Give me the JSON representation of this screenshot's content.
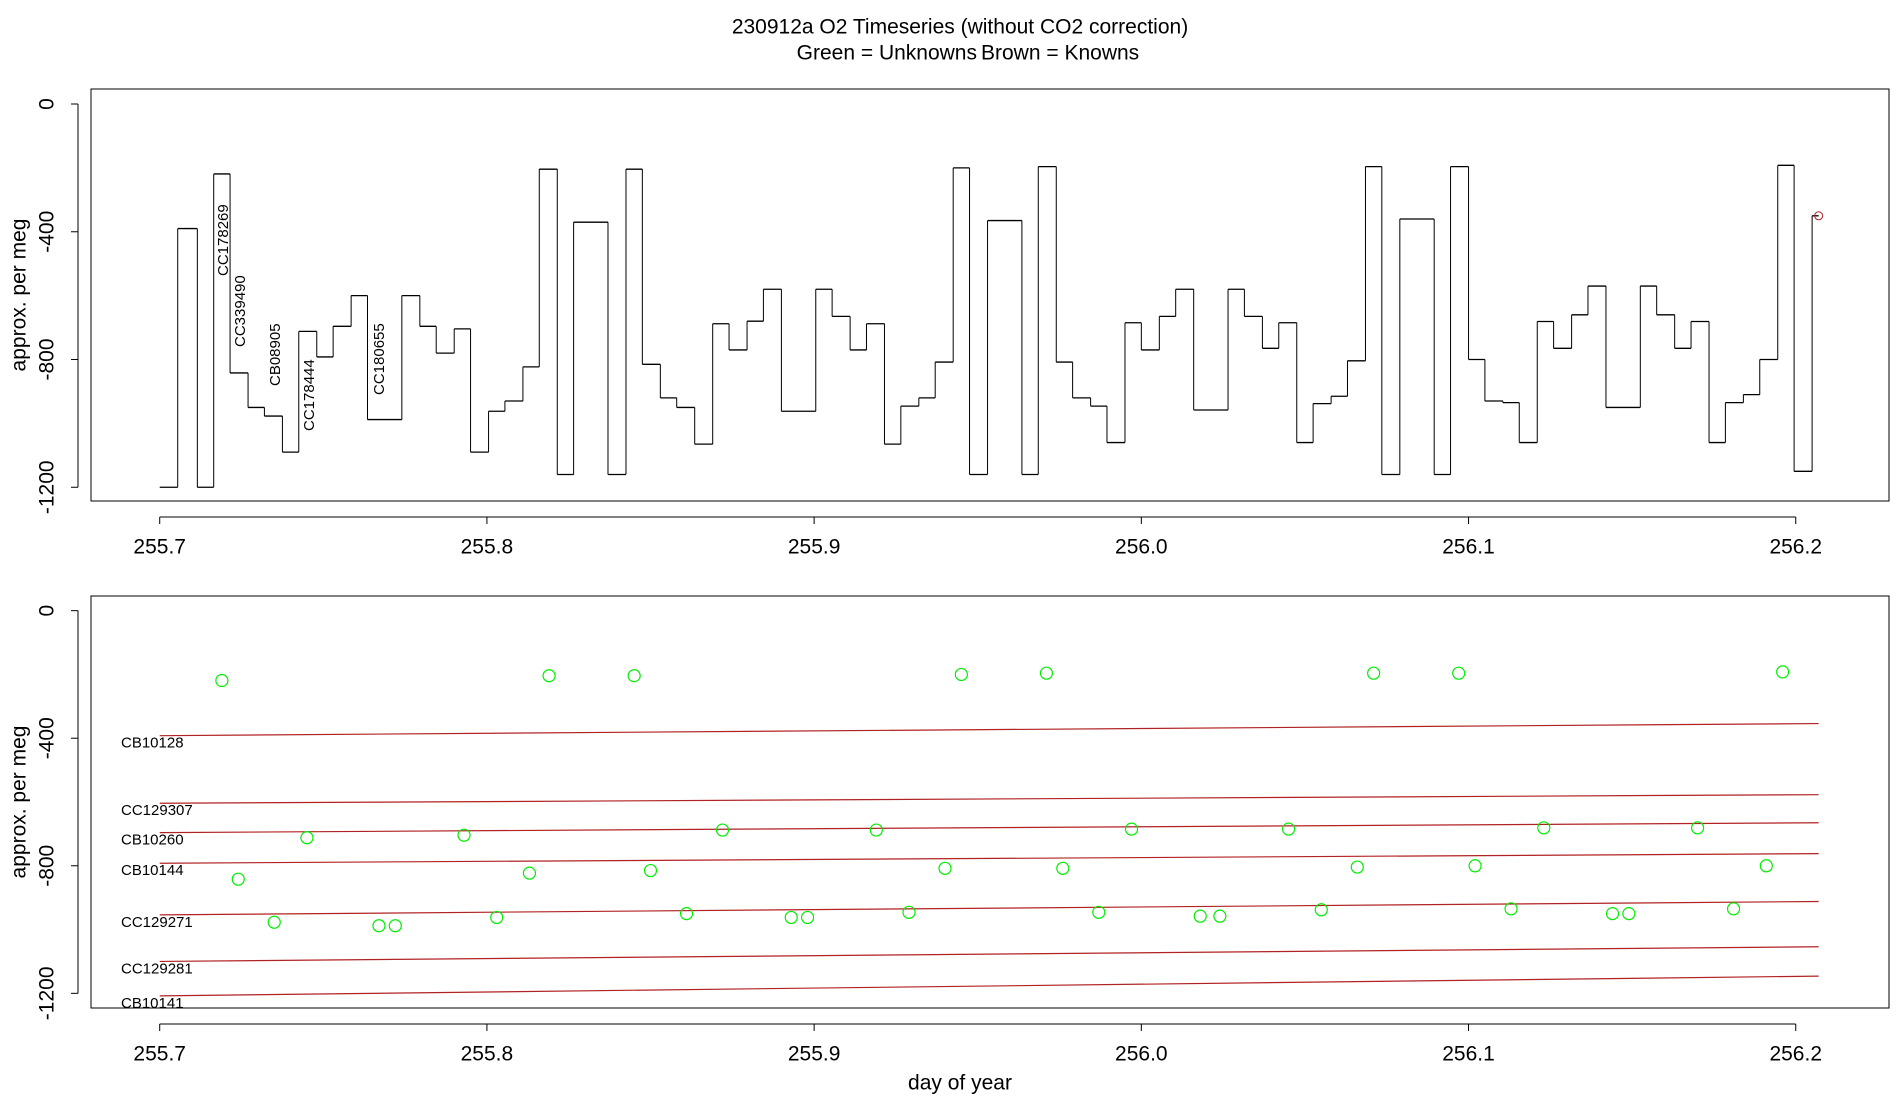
{
  "chart_data": [
    {
      "type": "line",
      "title": "230912a   O2 Timeseries (without CO2 correction)",
      "subtitle": [
        {
          "text": "Green = Unknowns",
          "color": "#00ee00"
        },
        {
          "text": "Brown = Knowns",
          "color": "#b22222"
        }
      ],
      "ylabel": "approx. per meg",
      "xlim": [
        255.679,
        256.2285
      ],
      "ylim": [
        -1243,
        47
      ],
      "xticks": [
        255.7,
        255.8,
        255.9,
        {
          "value": 256,
          "label": "256.0"
        },
        256.1,
        256.2
      ],
      "yticks": [
        0,
        -400,
        -800,
        -1200
      ],
      "annotations": [
        "CC178269",
        "CC339490",
        "CB08905",
        "CC178444",
        "CC180655"
      ],
      "annotation_color": "#00ee00",
      "series": [
        {
          "color": "#000000",
          "x": [
            255.7,
            255.7055,
            255.7115,
            255.7165,
            255.7215,
            255.727,
            255.732,
            255.7375,
            255.7425,
            255.748,
            255.753,
            255.7585,
            255.7635,
            255.774,
            255.7795,
            255.7845,
            255.79,
            255.795,
            255.8005,
            255.8055,
            255.811,
            255.816,
            255.8215,
            255.8265,
            255.837,
            255.8425,
            255.8475,
            255.853,
            255.858,
            255.8635,
            255.869,
            255.874,
            255.8795,
            255.8845,
            255.89,
            255.9005,
            255.9055,
            255.911,
            255.916,
            255.9215,
            255.9265,
            255.932,
            255.937,
            255.9425,
            255.9475,
            255.953,
            255.9635,
            255.9685,
            255.974,
            255.979,
            255.9845,
            255.9895,
            255.995,
            256.0,
            256.0055,
            256.0105,
            256.016,
            256.0265,
            256.0315,
            256.037,
            256.042,
            256.0475,
            256.0525,
            256.058,
            256.063,
            256.0685,
            256.0735,
            256.079,
            256.0895,
            256.0945,
            256.1,
            256.105,
            256.1105,
            256.1155,
            256.121,
            256.126,
            256.1315,
            256.1365,
            256.142,
            256.1525,
            256.1575,
            256.163,
            256.168,
            256.1735,
            256.1785,
            256.184,
            256.189,
            256.1945,
            256.1995,
            256.205,
            256.207
          ],
          "values": [
            -1200,
            -390,
            -1200,
            -219,
            -842,
            -950,
            -977,
            -1090,
            -712,
            -792,
            -696,
            -600,
            -988,
            -600,
            -696,
            -780,
            -704,
            -1090,
            -962,
            -930,
            -823,
            -204,
            -1160,
            -370,
            -1160,
            -204,
            -815,
            -920,
            -950,
            -1065,
            -688,
            -770,
            -680,
            -580,
            -962,
            -580,
            -665,
            -770,
            -688,
            -1065,
            -946,
            -920,
            -808,
            -200,
            -1160,
            -365,
            -1160,
            -196,
            -808,
            -920,
            -946,
            -1060,
            -685,
            -770,
            -665,
            -580,
            -958,
            -580,
            -665,
            -765,
            -685,
            -1060,
            -938,
            -915,
            -804,
            -196,
            -1160,
            -360,
            -1160,
            -196,
            -800,
            -930,
            -935,
            -1060,
            -681,
            -765,
            -660,
            -570,
            -950,
            -570,
            -660,
            -765,
            -681,
            -1060,
            -935,
            -910,
            -800,
            -192,
            -1150,
            -350,
            -350
          ]
        }
      ]
    },
    {
      "type": "scatter",
      "ylabel": "approx. per meg",
      "xlabel": "day of year",
      "xlim": [
        255.679,
        256.2285
      ],
      "ylim": [
        -1246,
        46
      ],
      "xticks": [
        255.7,
        255.8,
        255.9,
        {
          "value": 256,
          "label": "256.0"
        },
        256.1,
        256.2
      ],
      "yticks": [
        0,
        -400,
        -800,
        -1200
      ],
      "series": [
        {
          "color": "#00ee00",
          "x": [
            255.719,
            255.724,
            255.735,
            255.745,
            255.767,
            255.772,
            255.793,
            255.803,
            255.813,
            255.819,
            255.845,
            255.85,
            255.861,
            255.872,
            255.893,
            255.898,
            255.919,
            255.929,
            255.94,
            255.945,
            255.971,
            255.976,
            255.987,
            255.997,
            256.018,
            256.024,
            256.045,
            256.055,
            256.066,
            256.071,
            256.097,
            256.102,
            256.113,
            256.123,
            256.144,
            256.149,
            256.17,
            256.181,
            256.191,
            256.196
          ],
          "values": [
            -219,
            -842,
            -977,
            -712,
            -988,
            -988,
            -704,
            -962,
            -823,
            -204,
            -204,
            -815,
            -950,
            -688,
            -962,
            -962,
            -688,
            -946,
            -808,
            -200,
            -196,
            -808,
            -946,
            -685,
            -958,
            -958,
            -685,
            -938,
            -804,
            -196,
            -196,
            -800,
            -935,
            -681,
            -950,
            -950,
            -681,
            -935,
            -800,
            -192
          ]
        }
      ],
      "lines": [
        {
          "name": "CB10128",
          "color": "#b22222",
          "x": [
            255.7,
            256.207
          ],
          "values": [
            -392,
            -354
          ]
        },
        {
          "name": "CC129307",
          "color": "#b22222",
          "x": [
            255.7,
            256.207
          ],
          "values": [
            -604,
            -577
          ]
        },
        {
          "name": "CB10260",
          "color": "#b22222",
          "x": [
            255.7,
            256.207
          ],
          "values": [
            -696,
            -665
          ]
        },
        {
          "name": "CB10144",
          "color": "#b22222",
          "x": [
            255.7,
            256.207
          ],
          "values": [
            -792,
            -762
          ]
        },
        {
          "name": "CC129271",
          "color": "#b22222",
          "x": [
            255.7,
            256.207
          ],
          "values": [
            -954,
            -912
          ]
        },
        {
          "name": "CC129281",
          "color": "#b22222",
          "x": [
            255.7,
            256.207
          ],
          "values": [
            -1100,
            -1054
          ]
        },
        {
          "name": "CB10141",
          "color": "#b22222",
          "x": [
            255.7,
            256.207
          ],
          "values": [
            -1208,
            -1146
          ]
        }
      ]
    }
  ]
}
